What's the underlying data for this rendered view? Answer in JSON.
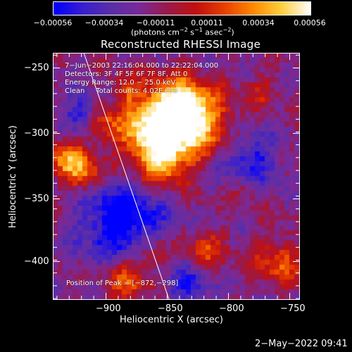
{
  "colorbar": {
    "ticks": [
      "−0.00056",
      "−0.00034",
      "−0.00011",
      "0.00011",
      "0.00034",
      "0.00056"
    ],
    "units_line": "(photons cm",
    "units_sup1": "−2",
    "units_mid": " s",
    "units_sup2": "−1",
    "units_end": " asec",
    "units_sup3": "−2",
    "units_close": ")"
  },
  "plot": {
    "title": "Reconstructed RHESSI Image",
    "xlabel": "Heliocentric X (arcsec)",
    "ylabel": "Heliocentric Y (arcsec)",
    "xticks": [
      "−900",
      "−850",
      "−800",
      "−750"
    ],
    "yticks": [
      "−250",
      "−300",
      "−350",
      "−400"
    ],
    "info": {
      "time": "7−Jun−2003 22:16:04.000 to 22:22:04.000",
      "detectors": "Detectors: 3F 4F 5F 6F 7F 8F, Att 0",
      "energy": "Energy Range: 12.0 − 25.0 keV",
      "clean": "Clean     Total counts: 4.02E+03"
    },
    "peak": "Position of Peak = [−872,−298]"
  },
  "timestamp": "2−May−2022 09:41",
  "colors": {
    "background": "#000000",
    "axes": "#ffffff",
    "colormap": [
      "#0000ff",
      "#3a1fd0",
      "#5a2fa8",
      "#7a2a9a",
      "#9a1a4a",
      "#c21010",
      "#e84000",
      "#ff8a00",
      "#ffd040",
      "#ffffff"
    ]
  }
}
